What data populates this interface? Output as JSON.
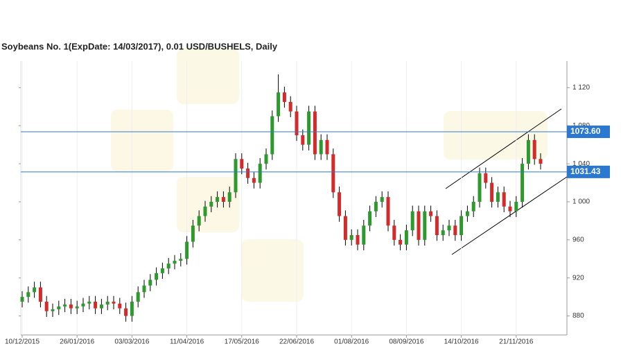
{
  "chart_data": {
    "type": "candlestick",
    "title": "Soybeans  No. 1(ExpDate: 14/03/2017), 0.01 USD/BUSHELS, Daily",
    "categories": [
      "10/12/2015",
      null,
      null,
      null,
      null,
      null,
      null,
      null,
      null,
      "26/01/2016",
      null,
      null,
      null,
      null,
      null,
      null,
      null,
      null,
      "03/03/2016",
      null,
      null,
      null,
      null,
      null,
      null,
      null,
      null,
      "11/04/2016",
      null,
      null,
      null,
      null,
      null,
      null,
      null,
      null,
      "17/05/2016",
      null,
      null,
      null,
      null,
      null,
      null,
      null,
      null,
      "22/06/2016",
      null,
      null,
      null,
      null,
      null,
      null,
      null,
      null,
      "01/08/2016",
      null,
      null,
      null,
      null,
      null,
      null,
      null,
      null,
      "08/09/2016",
      null,
      null,
      null,
      null,
      null,
      null,
      null,
      null,
      "14/10/2016",
      null,
      null,
      null,
      null,
      null,
      null,
      null,
      null,
      "21/11/2016",
      null,
      null,
      null,
      null
    ],
    "open": [
      895,
      900,
      905,
      910,
      895,
      885,
      887,
      890,
      892,
      888,
      890,
      893,
      895,
      888,
      892,
      895,
      893,
      888,
      880,
      895,
      905,
      912,
      918,
      925,
      930,
      935,
      938,
      940,
      958,
      975,
      985,
      995,
      1000,
      1005,
      1000,
      1010,
      1045,
      1035,
      1025,
      1020,
      1040,
      1050,
      1090,
      1115,
      1105,
      1095,
      1070,
      1060,
      1095,
      1050,
      1065,
      1050,
      1010,
      985,
      960,
      965,
      955,
      975,
      990,
      1000,
      1005,
      975,
      960,
      955,
      970,
      990,
      960,
      990,
      985,
      965,
      970,
      975,
      965,
      985,
      990,
      1000,
      1030,
      1020,
      1000,
      1010,
      995,
      990,
      1000,
      1040,
      1065,
      1045
    ],
    "high": [
      906,
      911,
      916,
      916,
      901,
      893,
      896,
      898,
      898,
      896,
      899,
      901,
      901,
      898,
      901,
      901,
      899,
      894,
      901,
      911,
      918,
      924,
      931,
      936,
      941,
      944,
      946,
      964,
      981,
      991,
      1001,
      1006,
      1011,
      1011,
      1016,
      1051,
      1051,
      1041,
      1031,
      1046,
      1056,
      1096,
      1134,
      1121,
      1111,
      1101,
      1076,
      1101,
      1101,
      1071,
      1071,
      1056,
      1016,
      991,
      971,
      971,
      981,
      996,
      1006,
      1011,
      1011,
      981,
      966,
      976,
      996,
      996,
      996,
      996,
      991,
      976,
      981,
      981,
      991,
      996,
      1006,
      1036,
      1036,
      1026,
      1016,
      1016,
      1001,
      1006,
      1046,
      1071,
      1071,
      1051
    ],
    "low": [
      889,
      894,
      899,
      889,
      879,
      879,
      881,
      884,
      882,
      882,
      884,
      887,
      882,
      882,
      886,
      887,
      882,
      874,
      874,
      889,
      899,
      906,
      912,
      919,
      924,
      929,
      932,
      934,
      952,
      969,
      979,
      989,
      994,
      994,
      994,
      1004,
      1029,
      1019,
      1014,
      1014,
      1034,
      1044,
      1084,
      1099,
      1089,
      1064,
      1054,
      1054,
      1044,
      1044,
      1044,
      1004,
      979,
      954,
      954,
      949,
      949,
      969,
      984,
      994,
      969,
      954,
      949,
      949,
      964,
      954,
      954,
      979,
      959,
      959,
      964,
      959,
      959,
      979,
      984,
      994,
      1014,
      994,
      994,
      989,
      984,
      984,
      994,
      1034,
      1039,
      1034
    ],
    "close": [
      900,
      905,
      910,
      895,
      885,
      887,
      890,
      892,
      888,
      890,
      893,
      895,
      888,
      892,
      895,
      893,
      888,
      880,
      895,
      905,
      912,
      918,
      925,
      930,
      935,
      938,
      940,
      958,
      975,
      985,
      995,
      1000,
      1005,
      1000,
      1010,
      1045,
      1035,
      1025,
      1020,
      1040,
      1050,
      1090,
      1115,
      1105,
      1095,
      1070,
      1060,
      1095,
      1050,
      1065,
      1050,
      1010,
      985,
      960,
      965,
      955,
      975,
      990,
      1000,
      1005,
      975,
      960,
      955,
      970,
      990,
      960,
      990,
      985,
      965,
      970,
      975,
      965,
      985,
      990,
      1000,
      1030,
      1020,
      1000,
      1010,
      995,
      990,
      1000,
      1040,
      1065,
      1045,
      1040
    ],
    "up_color": "#2e9a2e",
    "down_color": "#d42a2a",
    "ylim": [
      860,
      1148
    ],
    "yticks": [
      880,
      920,
      960,
      {
        "value": 1000,
        "label": "1 000"
      },
      {
        "value": 1040,
        "label": "1 040"
      },
      {
        "value": 1080,
        "label": "1 080"
      },
      {
        "value": 1120,
        "label": "1 120"
      }
    ],
    "levels": [
      {
        "value": 1073.6,
        "label": "1073.60"
      },
      {
        "value": 1031.43,
        "label": "1031.43"
      }
    ],
    "level_color": "#2a78d0"
  }
}
